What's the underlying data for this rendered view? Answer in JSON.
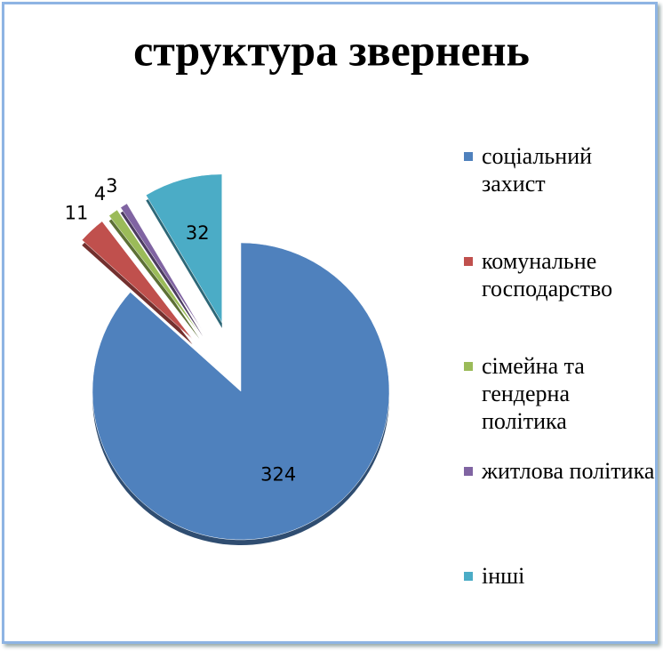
{
  "chart_data": {
    "type": "pie",
    "title": "структура звернень",
    "categories": [
      "соціальний захист",
      "комунальне господарство",
      "сімейна та гендерна політика",
      "житлова політика",
      "інші"
    ],
    "values": [
      324,
      11,
      4,
      3,
      32
    ],
    "colors": [
      "#4f81bd",
      "#c0504d",
      "#9bbb59",
      "#8064a2",
      "#4bacc6"
    ],
    "legend": "right"
  }
}
